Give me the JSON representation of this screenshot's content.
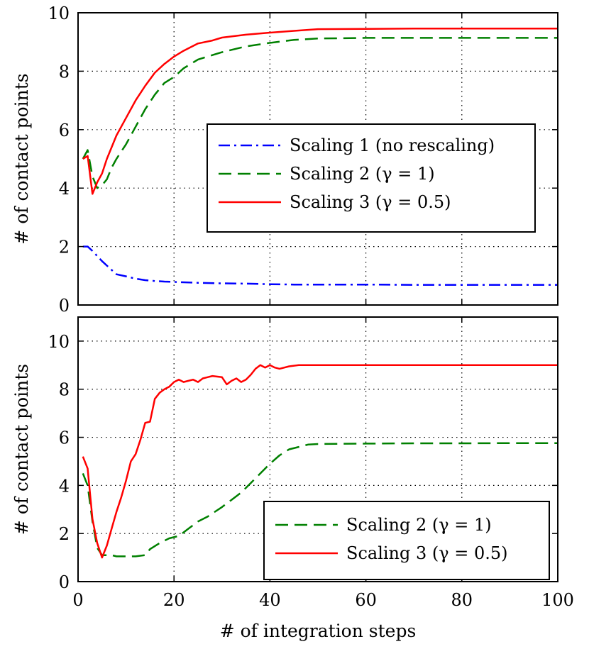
{
  "chart_data": [
    {
      "type": "line",
      "xlabel": "",
      "ylabel": "# of contact points",
      "xlim": [
        0,
        100
      ],
      "ylim": [
        0,
        10
      ],
      "xticks": [
        "0",
        "20",
        "40",
        "60",
        "80",
        "100"
      ],
      "yticks": [
        "0",
        "2",
        "4",
        "6",
        "8",
        "10"
      ],
      "grid": true,
      "legend_position": "center-right",
      "series": [
        {
          "name": "Scaling 1 (no rescaling)",
          "color": "#0000ff",
          "style": "dashdot",
          "points": [
            [
              1,
              2.0
            ],
            [
              2,
              2.0
            ],
            [
              3,
              1.85
            ],
            [
              5,
              1.5
            ],
            [
              7,
              1.2
            ],
            [
              8,
              1.05
            ],
            [
              10,
              0.98
            ],
            [
              12,
              0.9
            ],
            [
              14,
              0.85
            ],
            [
              16,
              0.82
            ],
            [
              18,
              0.8
            ],
            [
              20,
              0.79
            ],
            [
              25,
              0.76
            ],
            [
              30,
              0.74
            ],
            [
              35,
              0.73
            ],
            [
              40,
              0.71
            ],
            [
              45,
              0.7
            ],
            [
              50,
              0.7
            ],
            [
              60,
              0.7
            ],
            [
              70,
              0.69
            ],
            [
              80,
              0.69
            ],
            [
              90,
              0.69
            ],
            [
              100,
              0.69
            ]
          ]
        },
        {
          "name": "Scaling 2 (γ = 1)",
          "color": "#008000",
          "style": "dashed",
          "points": [
            [
              1,
              5.0
            ],
            [
              2,
              5.3
            ],
            [
              3,
              4.4
            ],
            [
              4,
              4.0
            ],
            [
              5,
              4.1
            ],
            [
              6,
              4.3
            ],
            [
              7,
              4.7
            ],
            [
              8,
              5.0
            ],
            [
              10,
              5.5
            ],
            [
              12,
              6.1
            ],
            [
              14,
              6.7
            ],
            [
              16,
              7.2
            ],
            [
              18,
              7.6
            ],
            [
              20,
              7.8
            ],
            [
              22,
              8.1
            ],
            [
              25,
              8.4
            ],
            [
              30,
              8.65
            ],
            [
              35,
              8.85
            ],
            [
              40,
              8.97
            ],
            [
              45,
              9.07
            ],
            [
              50,
              9.12
            ],
            [
              60,
              9.14
            ],
            [
              70,
              9.14
            ],
            [
              80,
              9.14
            ],
            [
              90,
              9.14
            ],
            [
              100,
              9.14
            ]
          ]
        },
        {
          "name": "Scaling 3 (γ = 0.5)",
          "color": "#ff0000",
          "style": "solid",
          "points": [
            [
              1,
              5.0
            ],
            [
              2,
              5.1
            ],
            [
              3,
              3.8
            ],
            [
              4,
              4.2
            ],
            [
              5,
              4.5
            ],
            [
              6,
              5.0
            ],
            [
              8,
              5.8
            ],
            [
              10,
              6.4
            ],
            [
              12,
              7.0
            ],
            [
              14,
              7.5
            ],
            [
              16,
              7.95
            ],
            [
              18,
              8.25
            ],
            [
              20,
              8.5
            ],
            [
              22,
              8.7
            ],
            [
              25,
              8.95
            ],
            [
              28,
              9.05
            ],
            [
              30,
              9.15
            ],
            [
              35,
              9.25
            ],
            [
              40,
              9.32
            ],
            [
              45,
              9.38
            ],
            [
              50,
              9.44
            ],
            [
              60,
              9.45
            ],
            [
              70,
              9.46
            ],
            [
              80,
              9.46
            ],
            [
              90,
              9.46
            ],
            [
              100,
              9.46
            ]
          ]
        }
      ]
    },
    {
      "type": "line",
      "xlabel": "# of integration steps",
      "ylabel": "# of contact points",
      "xlim": [
        0,
        100
      ],
      "ylim": [
        0,
        11
      ],
      "xticks": [
        "0",
        "20",
        "40",
        "60",
        "80",
        "100"
      ],
      "yticks": [
        "0",
        "2",
        "4",
        "6",
        "8",
        "10"
      ],
      "grid": true,
      "legend_position": "bottom-right",
      "series": [
        {
          "name": "Scaling 2 (γ = 1)",
          "color": "#008000",
          "style": "dashed",
          "points": [
            [
              1,
              4.5
            ],
            [
              2,
              4.0
            ],
            [
              3,
              2.5
            ],
            [
              4,
              1.4
            ],
            [
              5,
              1.1
            ],
            [
              6,
              1.1
            ],
            [
              7,
              1.1
            ],
            [
              8,
              1.05
            ],
            [
              10,
              1.05
            ],
            [
              12,
              1.05
            ],
            [
              14,
              1.1
            ],
            [
              15,
              1.35
            ],
            [
              17,
              1.6
            ],
            [
              19,
              1.8
            ],
            [
              21,
              1.9
            ],
            [
              23,
              2.2
            ],
            [
              25,
              2.5
            ],
            [
              27,
              2.7
            ],
            [
              30,
              3.1
            ],
            [
              32,
              3.4
            ],
            [
              34,
              3.7
            ],
            [
              36,
              4.1
            ],
            [
              38,
              4.5
            ],
            [
              40,
              4.9
            ],
            [
              42,
              5.25
            ],
            [
              44,
              5.5
            ],
            [
              46,
              5.6
            ],
            [
              48,
              5.7
            ],
            [
              50,
              5.72
            ],
            [
              60,
              5.74
            ],
            [
              70,
              5.75
            ],
            [
              80,
              5.75
            ],
            [
              90,
              5.76
            ],
            [
              100,
              5.76
            ]
          ]
        },
        {
          "name": "Scaling 3 (γ = 0.5)",
          "color": "#ff0000",
          "style": "solid",
          "points": [
            [
              1,
              5.2
            ],
            [
              2,
              4.7
            ],
            [
              3,
              2.6
            ],
            [
              4,
              1.6
            ],
            [
              5,
              1.0
            ],
            [
              6,
              1.5
            ],
            [
              7,
              2.2
            ],
            [
              8,
              2.9
            ],
            [
              9,
              3.5
            ],
            [
              10,
              4.2
            ],
            [
              11,
              5.0
            ],
            [
              12,
              5.3
            ],
            [
              13,
              5.9
            ],
            [
              14,
              6.6
            ],
            [
              15,
              6.65
            ],
            [
              16,
              7.6
            ],
            [
              17,
              7.85
            ],
            [
              18,
              8.0
            ],
            [
              19,
              8.1
            ],
            [
              20,
              8.3
            ],
            [
              21,
              8.4
            ],
            [
              22,
              8.3
            ],
            [
              23,
              8.35
            ],
            [
              24,
              8.4
            ],
            [
              25,
              8.3
            ],
            [
              26,
              8.45
            ],
            [
              27,
              8.5
            ],
            [
              28,
              8.55
            ],
            [
              30,
              8.5
            ],
            [
              31,
              8.2
            ],
            [
              32,
              8.35
            ],
            [
              33,
              8.45
            ],
            [
              34,
              8.3
            ],
            [
              35,
              8.4
            ],
            [
              36,
              8.6
            ],
            [
              37,
              8.85
            ],
            [
              38,
              9.0
            ],
            [
              39,
              8.9
            ],
            [
              40,
              9.0
            ],
            [
              41,
              8.9
            ],
            [
              42,
              8.85
            ],
            [
              44,
              8.95
            ],
            [
              46,
              9.0
            ],
            [
              48,
              9.0
            ],
            [
              50,
              9.0
            ],
            [
              60,
              9.0
            ],
            [
              70,
              9.0
            ],
            [
              80,
              9.0
            ],
            [
              90,
              9.0
            ],
            [
              100,
              9.0
            ]
          ]
        }
      ]
    }
  ]
}
